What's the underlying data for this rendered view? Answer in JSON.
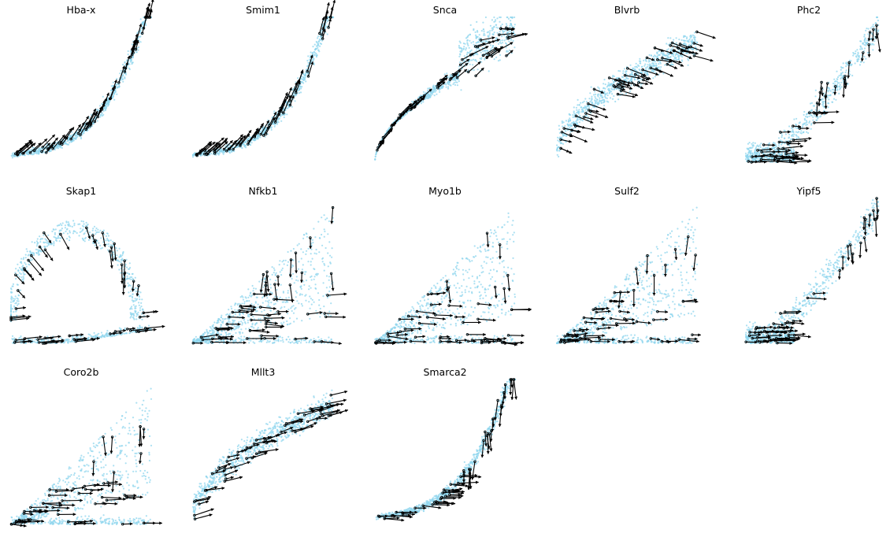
{
  "figure_title": "",
  "colors": {
    "points": "#8fd6ee",
    "arrows": "#000000",
    "background": "#ffffff"
  },
  "chart_data": [
    {
      "type": "scatter",
      "title": "Hba-x",
      "shape": "curve",
      "arrow_style": "along",
      "xlabel": "",
      "ylabel": "",
      "grid": false,
      "axes_visible": false
    },
    {
      "type": "scatter",
      "title": "Smim1",
      "shape": "curve",
      "arrow_style": "along",
      "xlabel": "",
      "ylabel": "",
      "grid": false,
      "axes_visible": false
    },
    {
      "type": "scatter",
      "title": "Snca",
      "shape": "arc",
      "arrow_style": "fan",
      "xlabel": "",
      "ylabel": "",
      "grid": false,
      "axes_visible": false
    },
    {
      "type": "scatter",
      "title": "Blvrb",
      "shape": "band",
      "arrow_style": "diagonal",
      "xlabel": "",
      "ylabel": "",
      "grid": false,
      "axes_visible": false
    },
    {
      "type": "scatter",
      "title": "Phc2",
      "shape": "blob",
      "arrow_style": "downward",
      "xlabel": "",
      "ylabel": "",
      "grid": false,
      "axes_visible": false
    },
    {
      "type": "scatter",
      "title": "Skap1",
      "shape": "loop",
      "arrow_style": "loop",
      "xlabel": "",
      "ylabel": "",
      "grid": false,
      "axes_visible": false
    },
    {
      "type": "scatter",
      "title": "Nfkb1",
      "shape": "wedge",
      "arrow_style": "downward",
      "xlabel": "",
      "ylabel": "",
      "grid": false,
      "axes_visible": false
    },
    {
      "type": "scatter",
      "title": "Myo1b",
      "shape": "wedge",
      "arrow_style": "downward",
      "xlabel": "",
      "ylabel": "",
      "grid": false,
      "axes_visible": false
    },
    {
      "type": "scatter",
      "title": "Sulf2",
      "shape": "wedge",
      "arrow_style": "downward",
      "xlabel": "",
      "ylabel": "",
      "grid": false,
      "axes_visible": false
    },
    {
      "type": "scatter",
      "title": "Yipf5",
      "shape": "blob",
      "arrow_style": "downward",
      "xlabel": "",
      "ylabel": "",
      "grid": false,
      "axes_visible": false
    },
    {
      "type": "scatter",
      "title": "Coro2b",
      "shape": "wedge",
      "arrow_style": "downward",
      "xlabel": "",
      "ylabel": "",
      "grid": false,
      "axes_visible": false
    },
    {
      "type": "scatter",
      "title": "Mllt3",
      "shape": "band",
      "arrow_style": "rightward",
      "xlabel": "",
      "ylabel": "",
      "grid": false,
      "axes_visible": false
    },
    {
      "type": "scatter",
      "title": "Smarca2",
      "shape": "curve",
      "arrow_style": "downward",
      "xlabel": "",
      "ylabel": "",
      "grid": false,
      "axes_visible": false
    }
  ]
}
